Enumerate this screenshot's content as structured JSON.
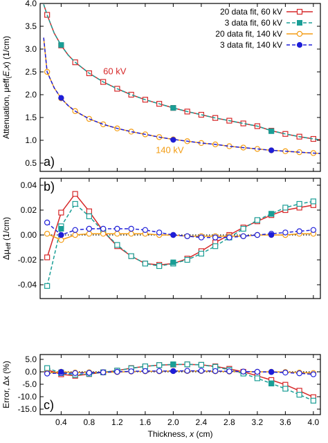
{
  "colors": {
    "red": "#d62728",
    "teal": "#1a9e96",
    "orange": "#f39c12",
    "blue": "#1e1ed8",
    "axis": "#000000"
  },
  "chart_data": [
    {
      "panel_label": "a)",
      "type": "line",
      "ylabel_parts": [
        "Attenuation, μ",
        "eff",
        "(",
        "E",
        ",",
        "x",
        ") (1/cm)"
      ],
      "xlim": [
        0.1,
        4.1
      ],
      "ylim": [
        0.5,
        4.0
      ],
      "yticks": [
        "0.5",
        "1.0",
        "1.5",
        "2.0",
        "2.5",
        "3.0",
        "3.5",
        "4.0"
      ],
      "ytick_values": [
        0.5,
        1.0,
        1.5,
        2.0,
        2.5,
        3.0,
        3.5,
        4.0
      ],
      "grid": false,
      "legend_position": "top-right",
      "legend": [
        "20 data fit, 60 kV",
        "3 data fit, 60 kV",
        "20 data fit, 140 kV",
        "3 data fit, 140 kV"
      ],
      "annotations": [
        {
          "text": "60 kV",
          "x": 1.0,
          "y": 2.45,
          "color": "red"
        },
        {
          "text": "140 kV",
          "x": 1.75,
          "y": 0.72,
          "color": "orange"
        }
      ],
      "series": [
        {
          "name": "20 data fit, 60 kV",
          "color": "red",
          "marker": "open-square",
          "dash": false,
          "curve_x": [
            0.15,
            0.2,
            0.3,
            0.4,
            0.5,
            0.6,
            0.8,
            1.0,
            1.2,
            1.4,
            1.6,
            1.8,
            2.0,
            2.2,
            2.4,
            2.6,
            2.8,
            3.0,
            3.2,
            3.4,
            3.6,
            3.8,
            4.0,
            4.1
          ],
          "curve_y": [
            3.98,
            3.75,
            3.35,
            3.08,
            2.87,
            2.71,
            2.47,
            2.28,
            2.13,
            2.0,
            1.89,
            1.8,
            1.71,
            1.63,
            1.56,
            1.49,
            1.43,
            1.37,
            1.31,
            1.21,
            1.14,
            1.08,
            1.03,
            1.01
          ],
          "points_x": [
            0.2,
            0.4,
            0.6,
            0.8,
            1.0,
            1.2,
            1.4,
            1.6,
            1.8,
            2.0,
            2.2,
            2.4,
            2.6,
            2.8,
            3.0,
            3.2,
            3.4,
            3.6,
            3.8,
            4.0
          ],
          "points_y": [
            3.75,
            3.08,
            2.71,
            2.47,
            2.28,
            2.13,
            2.0,
            1.89,
            1.8,
            1.71,
            1.63,
            1.56,
            1.49,
            1.43,
            1.37,
            1.31,
            1.21,
            1.14,
            1.08,
            1.03
          ]
        },
        {
          "name": "3 data fit, 60 kV",
          "color": "teal",
          "marker": "filled-square",
          "dash": true,
          "curve_x": [
            0.15,
            0.2,
            0.3,
            0.4,
            0.5,
            0.6,
            0.8,
            1.0,
            1.2,
            1.4,
            1.6,
            1.8,
            2.0,
            2.2,
            2.4,
            2.6,
            2.8,
            3.0,
            3.2,
            3.4,
            3.6,
            3.8,
            4.0,
            4.1
          ],
          "curve_y": [
            3.98,
            3.75,
            3.35,
            3.08,
            2.87,
            2.71,
            2.47,
            2.28,
            2.13,
            2.0,
            1.89,
            1.8,
            1.71,
            1.63,
            1.56,
            1.49,
            1.43,
            1.37,
            1.31,
            1.21,
            1.14,
            1.08,
            1.03,
            1.01
          ],
          "points_x": [
            0.4,
            2.0,
            3.4
          ],
          "points_y": [
            3.09,
            1.71,
            1.2
          ]
        },
        {
          "name": "20 data fit, 140 kV",
          "color": "orange",
          "marker": "open-circle",
          "dash": false,
          "curve_x": [
            0.15,
            0.2,
            0.3,
            0.4,
            0.5,
            0.6,
            0.8,
            1.0,
            1.2,
            1.4,
            1.6,
            1.8,
            2.0,
            2.2,
            2.4,
            2.6,
            2.8,
            3.0,
            3.2,
            3.4,
            3.6,
            3.8,
            4.0,
            4.1
          ],
          "curve_y": [
            3.25,
            2.5,
            2.15,
            1.92,
            1.76,
            1.64,
            1.47,
            1.35,
            1.26,
            1.19,
            1.13,
            1.07,
            1.02,
            0.98,
            0.94,
            0.91,
            0.87,
            0.84,
            0.81,
            0.78,
            0.76,
            0.74,
            0.72,
            0.71
          ],
          "points_x": [
            0.2,
            0.4,
            0.6,
            0.8,
            1.0,
            1.2,
            1.4,
            1.6,
            1.8,
            2.0,
            2.2,
            2.4,
            2.6,
            2.8,
            3.0,
            3.2,
            3.4,
            3.6,
            3.8,
            4.0
          ],
          "points_y": [
            2.5,
            1.92,
            1.64,
            1.47,
            1.35,
            1.26,
            1.19,
            1.13,
            1.07,
            1.02,
            0.98,
            0.94,
            0.91,
            0.87,
            0.84,
            0.81,
            0.78,
            0.76,
            0.74,
            0.72
          ]
        },
        {
          "name": "3 data fit, 140 kV",
          "color": "blue",
          "marker": "filled-circle",
          "dash": true,
          "curve_x": [
            0.15,
            0.2,
            0.3,
            0.4,
            0.5,
            0.6,
            0.8,
            1.0,
            1.2,
            1.4,
            1.6,
            1.8,
            2.0,
            2.2,
            2.4,
            2.6,
            2.8,
            3.0,
            3.2,
            3.4,
            3.6,
            3.8,
            4.0,
            4.1
          ],
          "curve_y": [
            3.25,
            2.5,
            2.15,
            1.92,
            1.76,
            1.64,
            1.47,
            1.35,
            1.26,
            1.19,
            1.13,
            1.07,
            1.02,
            0.98,
            0.94,
            0.91,
            0.87,
            0.84,
            0.81,
            0.78,
            0.76,
            0.74,
            0.72,
            0.71
          ],
          "points_x": [
            0.4,
            2.0,
            3.4
          ],
          "points_y": [
            1.93,
            1.01,
            0.78
          ]
        }
      ]
    },
    {
      "panel_label": "b)",
      "type": "line",
      "ylabel_parts": [
        "Δμ",
        "eff",
        " (1/cm)"
      ],
      "xlim": [
        0.1,
        4.1
      ],
      "ylim": [
        -0.05,
        0.045
      ],
      "yticks": [
        "-0.04",
        "-0.02",
        "0.00",
        "0.02",
        "0.04"
      ],
      "ytick_values": [
        -0.04,
        -0.02,
        0.0,
        0.02,
        0.04
      ],
      "zero_line": true,
      "grid": false,
      "series": [
        {
          "name": "20 data fit, 60 kV",
          "color": "red",
          "marker": "open-square",
          "dash": false,
          "x": [
            0.2,
            0.4,
            0.6,
            0.8,
            1.0,
            1.2,
            1.4,
            1.6,
            1.8,
            2.0,
            2.2,
            2.4,
            2.6,
            2.8,
            3.0,
            3.2,
            3.4,
            3.6,
            3.8,
            4.0
          ],
          "y": [
            -0.018,
            0.018,
            0.033,
            0.019,
            0.003,
            -0.009,
            -0.017,
            -0.023,
            -0.024,
            -0.023,
            -0.019,
            -0.013,
            -0.006,
            0.0,
            0.006,
            0.011,
            0.016,
            0.02,
            0.022,
            0.024
          ]
        },
        {
          "name": "3 data fit, 60 kV",
          "color": "teal",
          "marker": "open-square",
          "dash": true,
          "x": [
            0.2,
            0.4,
            0.6,
            0.8,
            1.0,
            1.2,
            1.4,
            1.6,
            1.8,
            2.0,
            2.2,
            2.4,
            2.6,
            2.8,
            3.0,
            3.2,
            3.4,
            3.6,
            3.8,
            4.0
          ],
          "y": [
            -0.041,
            0.007,
            0.025,
            0.015,
            0.003,
            -0.008,
            -0.017,
            -0.023,
            -0.025,
            -0.023,
            -0.02,
            -0.015,
            -0.009,
            -0.002,
            0.005,
            0.012,
            0.017,
            0.022,
            0.025,
            0.027
          ]
        },
        {
          "name": "3 data fit, 60 kV (fit points)",
          "color": "teal",
          "marker": "filled-square",
          "dash": false,
          "no_line": true,
          "x": [
            0.4,
            2.0,
            3.4
          ],
          "y": [
            0.005,
            -0.022,
            0.017
          ]
        },
        {
          "name": "20 data fit, 140 kV",
          "color": "orange",
          "marker": "open-circle",
          "dash": false,
          "x": [
            0.2,
            0.4,
            0.6,
            0.8,
            1.0,
            1.2,
            1.4,
            1.6,
            1.8,
            2.0,
            2.2,
            2.4,
            2.6,
            2.8,
            3.0,
            3.2,
            3.4,
            3.6,
            3.8,
            4.0
          ],
          "y": [
            0.001,
            -0.004,
            0.0,
            0.001,
            0.001,
            0.001,
            0.001,
            0.001,
            0.0,
            0.0,
            -0.001,
            -0.001,
            -0.001,
            -0.001,
            -0.001,
            0.0,
            0.0,
            0.0,
            0.001,
            0.001
          ]
        },
        {
          "name": "3 data fit, 140 kV",
          "color": "blue",
          "marker": "open-circle",
          "dash": true,
          "x": [
            0.2,
            0.4,
            0.6,
            0.8,
            1.0,
            1.2,
            1.4,
            1.6,
            1.8,
            2.0,
            2.2,
            2.4,
            2.6,
            2.8,
            3.0,
            3.2,
            3.4,
            3.6,
            3.8,
            4.0
          ],
          "y": [
            0.01,
            0.0,
            0.004,
            0.005,
            0.005,
            0.005,
            0.005,
            0.004,
            0.002,
            0.0,
            -0.001,
            -0.002,
            -0.002,
            -0.002,
            -0.001,
            0.0,
            0.001,
            0.002,
            0.003,
            0.004
          ]
        },
        {
          "name": "3 data fit, 140 kV (fit points)",
          "color": "blue",
          "marker": "filled-circle",
          "dash": false,
          "no_line": true,
          "x": [
            0.4,
            2.0,
            3.4
          ],
          "y": [
            0.0,
            0.0,
            0.0
          ]
        }
      ]
    },
    {
      "panel_label": "c)",
      "type": "line",
      "ylabel_parts": [
        "Error, Δx (%)"
      ],
      "xlabel_parts": [
        "Thickness, ",
        "x",
        " (cm)"
      ],
      "xlim": [
        0.1,
        4.1
      ],
      "ylim": [
        -15.0,
        5.0
      ],
      "xticks": [
        "0.4",
        "0.8",
        "1.2",
        "1.6",
        "2.0",
        "2.4",
        "2.8",
        "3.2",
        "3.6",
        "4.0"
      ],
      "xtick_values": [
        0.4,
        0.8,
        1.2,
        1.6,
        2.0,
        2.4,
        2.8,
        3.2,
        3.6,
        4.0
      ],
      "yticks": [
        "-15.0",
        "-10.0",
        "-5.0",
        "0.0",
        "5.0"
      ],
      "ytick_values": [
        -15.0,
        -10.0,
        -5.0,
        0.0,
        5.0
      ],
      "zero_line": true,
      "grid": false,
      "series": [
        {
          "name": "20 data fit, 60 kV",
          "color": "red",
          "marker": "open-square",
          "dash": false,
          "x": [
            0.2,
            0.4,
            0.6,
            0.8,
            1.0,
            1.2,
            1.4,
            1.6,
            1.8,
            2.0,
            2.2,
            2.4,
            2.6,
            2.8,
            3.0,
            3.2,
            3.4,
            3.6,
            3.8,
            4.0
          ],
          "y": [
            0.8,
            -1.0,
            -1.6,
            -0.9,
            -0.2,
            0.5,
            1.5,
            2.2,
            2.7,
            2.9,
            3.0,
            2.8,
            2.2,
            1.2,
            0.0,
            -1.6,
            -3.3,
            -5.2,
            -7.6,
            -10.2
          ]
        },
        {
          "name": "3 data fit, 60 kV",
          "color": "teal",
          "marker": "open-square",
          "dash": true,
          "x": [
            0.2,
            0.4,
            0.6,
            0.8,
            1.0,
            1.2,
            1.4,
            1.6,
            1.8,
            2.0,
            2.2,
            2.4,
            2.6,
            2.8,
            3.0,
            3.2,
            3.4,
            3.6,
            3.8,
            4.0
          ],
          "y": [
            1.5,
            -0.5,
            -1.2,
            -0.8,
            -0.2,
            0.5,
            1.4,
            2.2,
            2.7,
            3.0,
            3.0,
            2.8,
            2.0,
            0.8,
            -0.7,
            -2.6,
            -4.7,
            -6.8,
            -9.2,
            -11.6
          ]
        },
        {
          "name": "3 data fit, 60 kV (fit points)",
          "color": "teal",
          "marker": "filled-square",
          "dash": false,
          "no_line": true,
          "x": [
            0.4,
            2.0,
            3.4
          ],
          "y": [
            -0.2,
            3.0,
            -4.6
          ]
        },
        {
          "name": "20 data fit, 140 kV",
          "color": "orange",
          "marker": "open-circle",
          "dash": false,
          "x": [
            0.2,
            0.4,
            0.6,
            0.8,
            1.0,
            1.2,
            1.4,
            1.6,
            1.8,
            2.0,
            2.2,
            2.4,
            2.6,
            2.8,
            3.0,
            3.2,
            3.4,
            3.6,
            3.8,
            4.0
          ],
          "y": [
            -0.5,
            0.0,
            -0.3,
            -0.2,
            -0.2,
            -0.1,
            0.1,
            0.2,
            0.2,
            0.3,
            0.3,
            0.3,
            0.2,
            0.1,
            0.1,
            0.0,
            0.0,
            -0.1,
            -0.3,
            -0.5
          ]
        },
        {
          "name": "3 data fit, 140 kV",
          "color": "blue",
          "marker": "open-circle",
          "dash": true,
          "x": [
            0.2,
            0.4,
            0.6,
            0.8,
            1.0,
            1.2,
            1.4,
            1.6,
            1.8,
            2.0,
            2.2,
            2.4,
            2.6,
            2.8,
            3.0,
            3.2,
            3.4,
            3.6,
            3.8,
            4.0
          ],
          "y": [
            -0.7,
            -0.5,
            -0.5,
            -0.4,
            -0.2,
            0.0,
            0.2,
            0.3,
            0.3,
            0.3,
            0.4,
            0.4,
            0.3,
            0.2,
            0.1,
            0.0,
            -0.1,
            -0.3,
            -0.6,
            -1.0
          ]
        },
        {
          "name": "3 data fit, 140 kV (fit points)",
          "color": "blue",
          "marker": "filled-circle",
          "dash": false,
          "no_line": true,
          "x": [
            0.4,
            2.0,
            3.4
          ],
          "y": [
            0.0,
            0.3,
            0.0
          ]
        }
      ]
    }
  ]
}
